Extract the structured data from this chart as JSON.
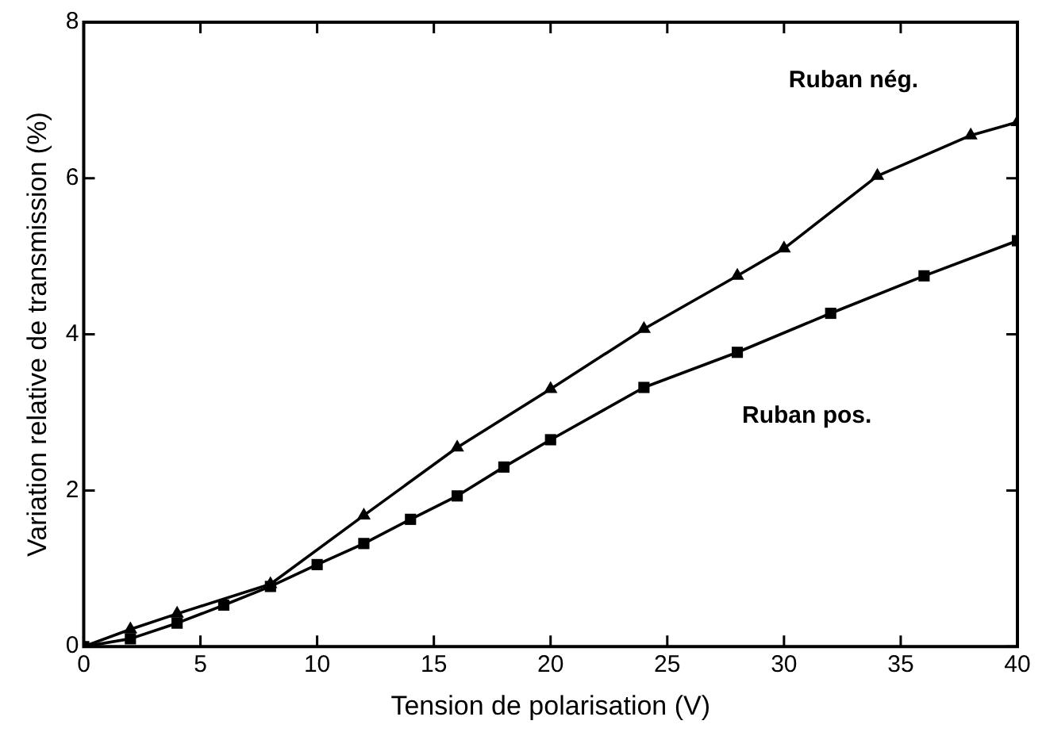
{
  "chart_data": {
    "type": "line",
    "xlabel": "Tension de polarisation (V)",
    "ylabel": "Variation relative de transmission (%)",
    "xlim": [
      0,
      40
    ],
    "xticks": [
      0,
      5,
      10,
      15,
      20,
      25,
      30,
      35,
      40
    ],
    "ylim": [
      0,
      8
    ],
    "yticks": [
      0,
      2,
      4,
      6,
      8
    ],
    "grid": false,
    "legend": false,
    "series": [
      {
        "name": "Ruban nég.",
        "color": "#000000",
        "marker": "triangle",
        "x": [
          0,
          2,
          4,
          8,
          12,
          16,
          20,
          24,
          28,
          30,
          34,
          38,
          40
        ],
        "values": [
          0,
          0.22,
          0.42,
          0.8,
          1.68,
          2.55,
          3.3,
          4.07,
          4.75,
          5.1,
          6.03,
          6.55,
          6.72
        ]
      },
      {
        "name": "Ruban pos.",
        "color": "#000000",
        "marker": "square",
        "x": [
          0,
          2,
          4,
          6,
          8,
          10,
          12,
          14,
          16,
          18,
          20,
          24,
          28,
          32,
          36,
          40
        ],
        "values": [
          0,
          0.1,
          0.3,
          0.53,
          0.77,
          1.05,
          1.32,
          1.63,
          1.93,
          2.3,
          2.65,
          3.32,
          3.77,
          4.27,
          4.75,
          5.2
        ]
      }
    ]
  }
}
